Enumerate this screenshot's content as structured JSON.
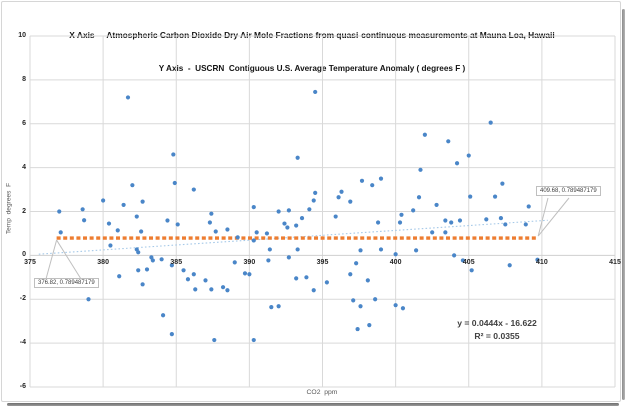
{
  "title": {
    "line1": "X Axis  -  Atmospheric Carbon Dioxide Dry Air Mole Fractions from quasi-continuous measurements at Mauna Loa, Hawaii",
    "line2": "Y Axis  -  USCRN  Contiguous U.S. Average Temperature Anomaly ( degrees F )"
  },
  "axes": {
    "x_label": "CO2  ppm",
    "y_label": "Temp  degrees  F",
    "x_range": [
      375,
      415
    ],
    "y_range": [
      -6,
      10
    ],
    "x_ticks": [
      375,
      380,
      385,
      390,
      395,
      400,
      405,
      410,
      415
    ],
    "y_ticks": [
      10,
      8,
      6,
      4,
      2,
      0,
      -2,
      -4,
      -6
    ],
    "grid": "both"
  },
  "annotations": {
    "left_callout": "376.82, 0.789487179",
    "right_callout": "409.68, 0.789487179",
    "equation": "y = 0.0444x - 16.622",
    "r_squared": "R² = 0.0355"
  },
  "colors": {
    "scatter_point": "#4A86C8",
    "average_line": "#ED7D31",
    "trendline": "#A6C9E8",
    "gridline": "#D9D9D9",
    "zero_line": "#CFCFCF",
    "tick_text": "#262626",
    "axis_title_text": "#595959"
  },
  "chart_data": {
    "type": "scatter",
    "title": "CO2 (Mauna Loa) vs USCRN U.S. Temperature Anomaly",
    "xlabel": "CO2  ppm",
    "ylabel": "Temp  degrees  F",
    "xlim": [
      375,
      415
    ],
    "ylim": [
      -6,
      10
    ],
    "legend": "none",
    "series": [
      {
        "name": "temp-anomaly-vs-co2",
        "marker": "circle",
        "color": "#4A86C8",
        "points": [
          [
            377.0,
            2.0
          ],
          [
            377.1,
            1.05
          ],
          [
            378.6,
            2.1
          ],
          [
            378.7,
            1.6
          ],
          [
            379.0,
            -2.0
          ],
          [
            380.0,
            2.5
          ],
          [
            380.4,
            1.45
          ],
          [
            380.5,
            0.45
          ],
          [
            381.0,
            1.14
          ],
          [
            381.1,
            -0.95
          ],
          [
            381.4,
            2.3
          ],
          [
            381.7,
            7.2
          ],
          [
            382.0,
            3.2
          ],
          [
            382.3,
            1.77
          ],
          [
            382.3,
            0.27
          ],
          [
            382.4,
            0.14
          ],
          [
            382.4,
            -0.68
          ],
          [
            382.6,
            1.09
          ],
          [
            382.7,
            2.45
          ],
          [
            382.7,
            -1.32
          ],
          [
            383.0,
            -0.64
          ],
          [
            383.3,
            -0.09
          ],
          [
            383.4,
            -0.23
          ],
          [
            384.0,
            -0.18
          ],
          [
            384.1,
            -2.73
          ],
          [
            384.4,
            1.59
          ],
          [
            384.7,
            -0.45
          ],
          [
            384.7,
            -3.59
          ],
          [
            384.8,
            4.6
          ],
          [
            384.9,
            3.3
          ],
          [
            385.1,
            1.41
          ],
          [
            385.5,
            -0.68
          ],
          [
            385.8,
            -1.09
          ],
          [
            386.2,
            3.0
          ],
          [
            386.2,
            -0.86
          ],
          [
            386.3,
            -1.55
          ],
          [
            387.0,
            -1.14
          ],
          [
            387.3,
            1.5
          ],
          [
            387.4,
            1.9
          ],
          [
            387.4,
            -1.55
          ],
          [
            387.6,
            -3.86
          ],
          [
            387.7,
            1.09
          ],
          [
            388.2,
            -1.45
          ],
          [
            388.5,
            1.18
          ],
          [
            388.5,
            -1.59
          ],
          [
            389.0,
            -0.32
          ],
          [
            389.2,
            0.82
          ],
          [
            389.7,
            -0.82
          ],
          [
            390.0,
            -0.86
          ],
          [
            390.3,
            2.2
          ],
          [
            390.3,
            0.68
          ],
          [
            390.3,
            -3.86
          ],
          [
            390.5,
            1.05
          ],
          [
            391.2,
            1.0
          ],
          [
            391.3,
            -0.23
          ],
          [
            391.4,
            0.27
          ],
          [
            391.5,
            -2.36
          ],
          [
            392.0,
            2.0
          ],
          [
            392.0,
            -2.32
          ],
          [
            392.4,
            1.45
          ],
          [
            392.6,
            1.27
          ],
          [
            392.7,
            2.05
          ],
          [
            392.7,
            -0.09
          ],
          [
            393.2,
            1.36
          ],
          [
            393.2,
            -1.05
          ],
          [
            393.3,
            4.45
          ],
          [
            393.3,
            0.27
          ],
          [
            393.6,
            1.7
          ],
          [
            393.9,
            -1.0
          ],
          [
            394.1,
            2.1
          ],
          [
            394.4,
            2.5
          ],
          [
            394.4,
            -1.59
          ],
          [
            394.5,
            7.45
          ],
          [
            394.5,
            2.85
          ],
          [
            395.3,
            -1.23
          ],
          [
            395.9,
            1.77
          ],
          [
            396.1,
            2.65
          ],
          [
            396.3,
            2.9
          ],
          [
            396.9,
            2.45
          ],
          [
            396.9,
            -0.86
          ],
          [
            397.1,
            -2.05
          ],
          [
            397.3,
            -0.36
          ],
          [
            397.4,
            -3.36
          ],
          [
            397.6,
            0.23
          ],
          [
            397.6,
            -2.32
          ],
          [
            397.7,
            3.4
          ],
          [
            398.1,
            -1.14
          ],
          [
            398.2,
            -3.18
          ],
          [
            398.4,
            3.2
          ],
          [
            398.6,
            -2.0
          ],
          [
            398.8,
            1.5
          ],
          [
            399.0,
            3.5
          ],
          [
            399.0,
            0.27
          ],
          [
            400.0,
            0.05
          ],
          [
            400.0,
            -2.27
          ],
          [
            400.3,
            1.5
          ],
          [
            400.4,
            1.85
          ],
          [
            400.5,
            -2.41
          ],
          [
            401.2,
            2.05
          ],
          [
            401.4,
            0.23
          ],
          [
            401.6,
            2.65
          ],
          [
            401.7,
            3.9
          ],
          [
            402.0,
            5.5
          ],
          [
            402.5,
            1.05
          ],
          [
            402.8,
            2.3
          ],
          [
            403.4,
            1.59
          ],
          [
            403.4,
            1.05
          ],
          [
            403.6,
            5.2
          ],
          [
            403.8,
            1.5
          ],
          [
            404.0,
            0.0
          ],
          [
            404.2,
            4.2
          ],
          [
            404.4,
            1.59
          ],
          [
            404.6,
            -0.23
          ],
          [
            405.0,
            4.55
          ],
          [
            405.1,
            2.68
          ],
          [
            405.2,
            -0.68
          ],
          [
            406.2,
            1.64
          ],
          [
            406.5,
            6.05
          ],
          [
            406.8,
            2.68
          ],
          [
            407.2,
            1.7
          ],
          [
            407.3,
            3.27
          ],
          [
            407.5,
            1.41
          ],
          [
            407.8,
            -0.45
          ],
          [
            408.9,
            1.41
          ],
          [
            409.1,
            2.23
          ],
          [
            409.7,
            -0.2
          ]
        ]
      },
      {
        "name": "average-temp-anomaly-line",
        "marker": "dash",
        "color": "#ED7D31",
        "value": 0.789487179,
        "x_min": 376.82,
        "x_max": 409.68
      },
      {
        "name": "linear-trendline",
        "style": "dotted",
        "color": "#A6C9E8",
        "slope": 0.0444,
        "intercept": -16.622,
        "x_min": 375.6,
        "x_max": 410.4,
        "equation": "y = 0.0444x - 16.622",
        "r_squared": 0.0355
      }
    ]
  }
}
